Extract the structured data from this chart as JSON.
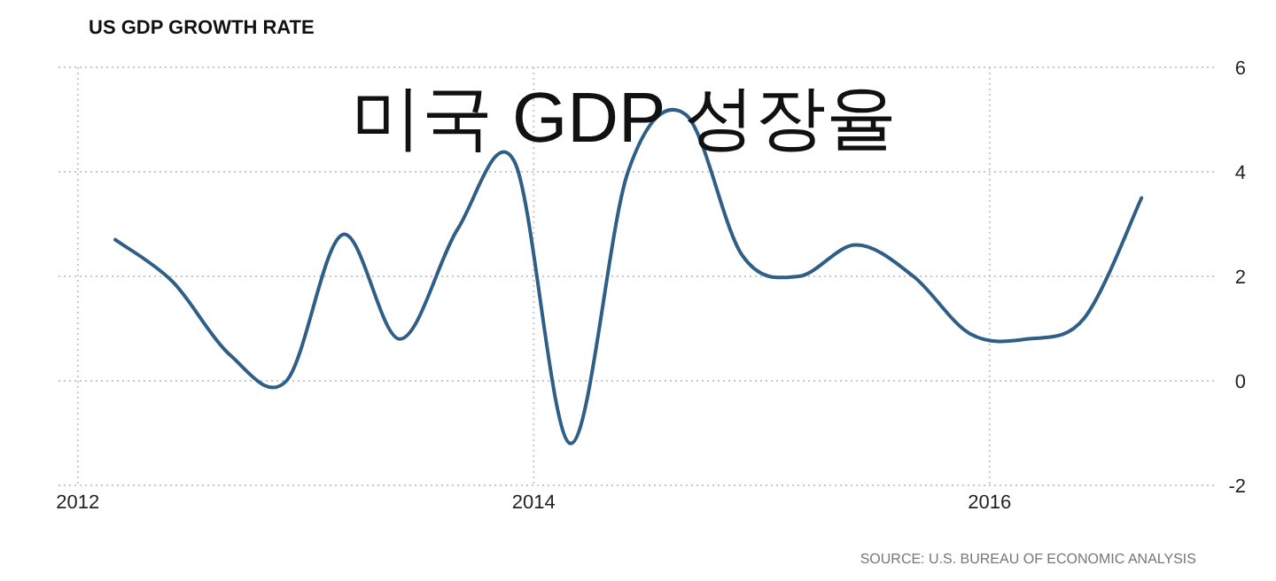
{
  "chart_data": {
    "type": "line",
    "title": "US GDP GROWTH RATE",
    "subtitle": "미국 GDP 성장율",
    "annotations": [
      "SOURCE: U.S. BUREAU OF ECONOMIC ANALYSIS"
    ],
    "x": [
      "2012-03-01",
      "2012-06-01",
      "2012-09-01",
      "2012-12-01",
      "2013-03-01",
      "2013-06-01",
      "2013-09-01",
      "2013-12-01",
      "2014-03-01",
      "2014-06-01",
      "2014-09-01",
      "2014-12-01",
      "2015-03-01",
      "2015-06-01",
      "2015-09-01",
      "2015-12-01",
      "2016-03-01",
      "2016-06-01",
      "2016-09-01"
    ],
    "series": [
      {
        "color": "#2f5f86",
        "values": [
          2.7,
          1.9,
          0.5,
          0.0,
          2.8,
          0.8,
          2.9,
          4.2,
          -1.2,
          4.0,
          5.1,
          2.4,
          2.0,
          2.6,
          2.0,
          0.9,
          0.8,
          1.2,
          3.5
        ]
      }
    ],
    "xlim": [
      "2011-12-01",
      "2017-01-01"
    ],
    "xticks": [
      "2012",
      "2014",
      "2016"
    ],
    "ylim": [
      -2,
      6
    ],
    "yticks": [
      -2,
      0,
      2,
      4,
      6
    ],
    "grid": true,
    "marker": "none",
    "line_style": "solid"
  }
}
